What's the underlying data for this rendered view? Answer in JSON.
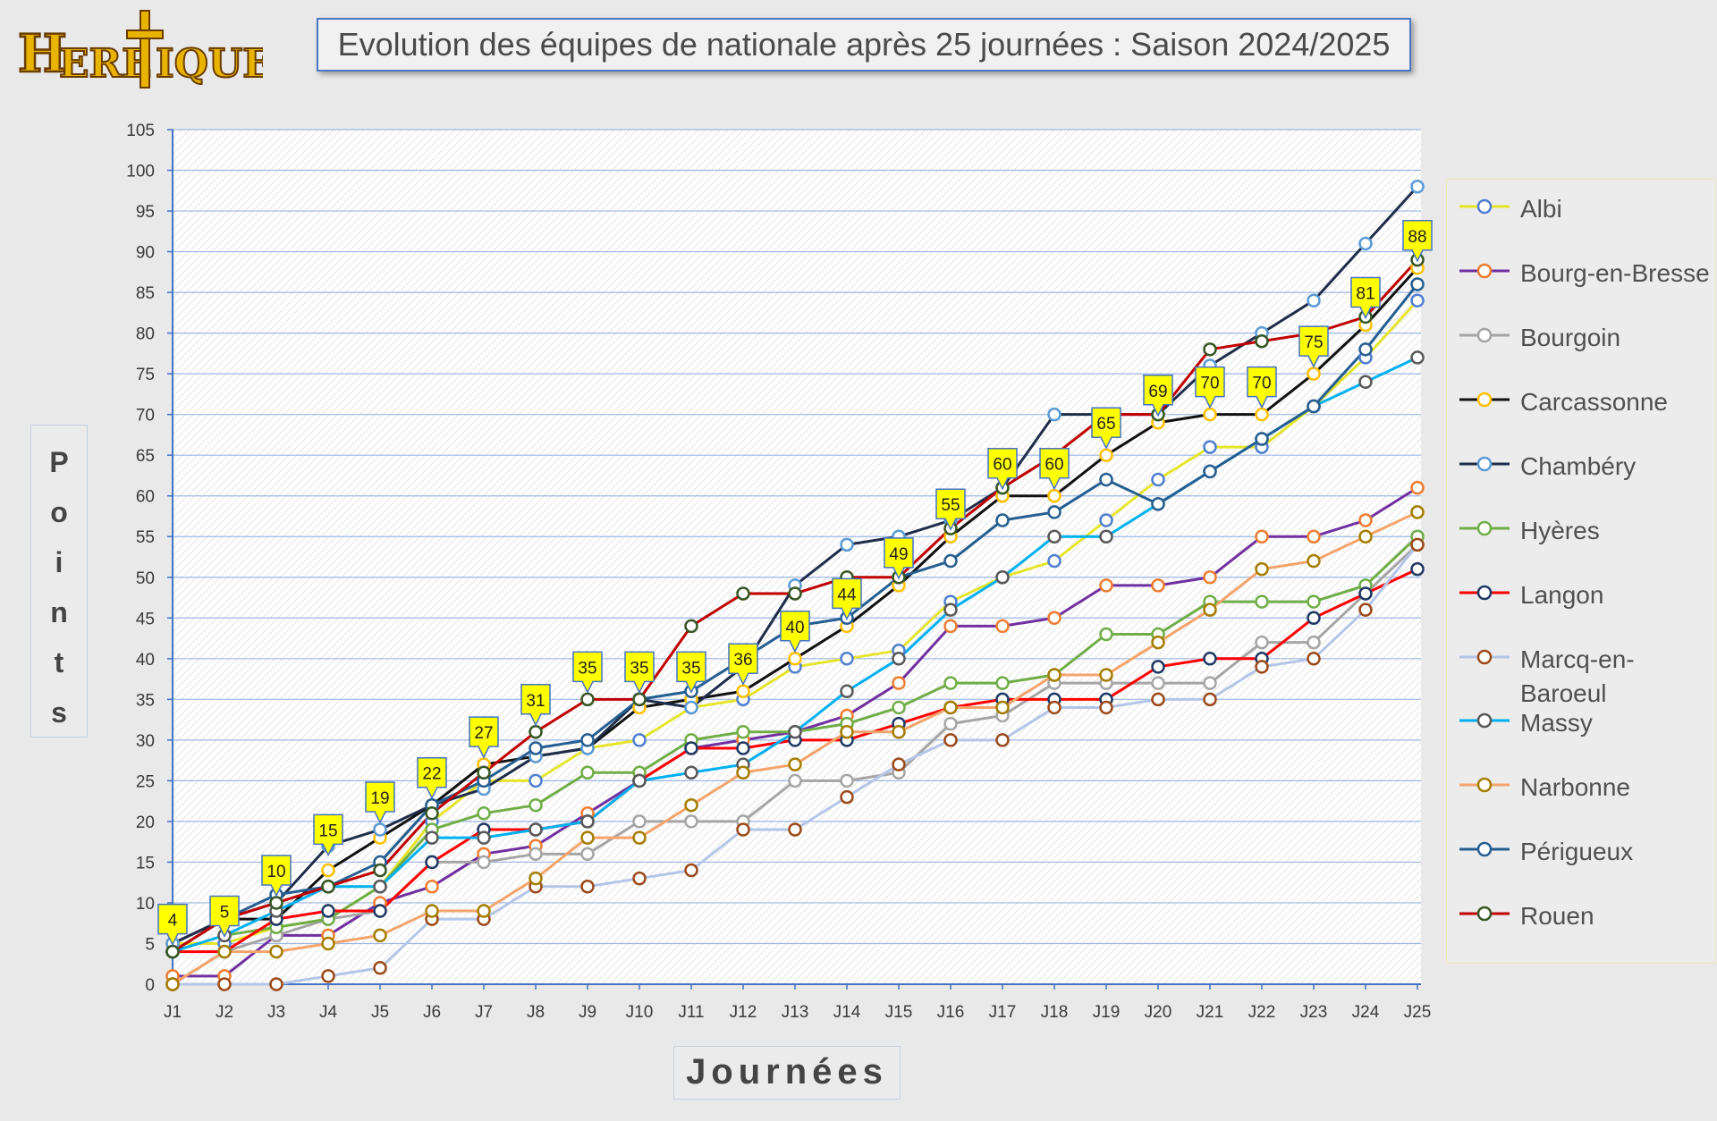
{
  "logo_text": "Heretiques",
  "title": "Evolution des équipes de nationale après 25 journées : Saison 2024/2025",
  "chart_data": {
    "type": "line",
    "title": "Evolution des équipes de nationale après 25 journées : Saison 2024/2025",
    "xlabel": "Journées",
    "ylabel": "Points",
    "ylim": [
      0,
      105
    ],
    "yticks": [
      0,
      5,
      10,
      15,
      20,
      25,
      30,
      35,
      40,
      45,
      50,
      55,
      60,
      65,
      70,
      75,
      80,
      85,
      90,
      95,
      100,
      105
    ],
    "grid": true,
    "legend_position": "right",
    "categories": [
      "J1",
      "J2",
      "J3",
      "J4",
      "J5",
      "J6",
      "J7",
      "J8",
      "J9",
      "J10",
      "J11",
      "J12",
      "J13",
      "J14",
      "J15",
      "J16",
      "J17",
      "J18",
      "J19",
      "J20",
      "J21",
      "J22",
      "J23",
      "J24",
      "J25"
    ],
    "series": [
      {
        "name": "Albi",
        "color": "#e5e52c",
        "marker": "#4f7fd0",
        "values": [
          5,
          5,
          7,
          8,
          12,
          20,
          25,
          25,
          29,
          30,
          34,
          35,
          39,
          40,
          41,
          47,
          50,
          52,
          57,
          62,
          66,
          66,
          71,
          77,
          84
        ]
      },
      {
        "name": "Bourg-en-Bresse",
        "color": "#7030a0",
        "marker": "#ee7d31",
        "values": [
          1,
          1,
          6,
          6,
          10,
          12,
          16,
          17,
          21,
          25,
          29,
          30,
          31,
          33,
          37,
          44,
          44,
          45,
          49,
          49,
          50,
          55,
          55,
          57,
          61
        ]
      },
      {
        "name": "Bourgoin",
        "color": "#a5a5a5",
        "marker": "#a5a5a5",
        "values": [
          0,
          4,
          6,
          8,
          9,
          15,
          15,
          16,
          16,
          20,
          20,
          20,
          25,
          25,
          26,
          32,
          33,
          37,
          37,
          37,
          37,
          42,
          42,
          48,
          54
        ]
      },
      {
        "name": "Carcassonne",
        "color": "#111111",
        "marker": "#ffc000",
        "values": [
          5,
          8,
          8,
          14,
          18,
          22,
          27,
          28,
          29,
          34,
          35,
          36,
          40,
          44,
          49,
          55,
          60,
          60,
          65,
          69,
          70,
          70,
          75,
          81,
          88
        ]
      },
      {
        "name": "Chambéry",
        "color": "#1f2d4a",
        "marker": "#5b9bd5",
        "values": [
          5,
          8,
          10,
          17,
          19,
          22,
          24,
          28,
          29,
          35,
          34,
          39,
          49,
          54,
          55,
          57,
          61,
          70,
          70,
          70,
          76,
          80,
          84,
          91,
          98
        ]
      },
      {
        "name": "Hyères",
        "color": "#70ad47",
        "marker": "#70ad47",
        "values": [
          4,
          6,
          7,
          8,
          12,
          19,
          21,
          22,
          26,
          26,
          30,
          31,
          31,
          32,
          34,
          37,
          37,
          38,
          43,
          43,
          47,
          47,
          47,
          49,
          55
        ]
      },
      {
        "name": "Langon",
        "color": "#ff0000",
        "marker": "#1f3864",
        "values": [
          4,
          4,
          8,
          9,
          9,
          15,
          19,
          19,
          20,
          25,
          29,
          29,
          30,
          30,
          32,
          34,
          35,
          35,
          35,
          39,
          40,
          40,
          45,
          48,
          51
        ]
      },
      {
        "name": "Marcq-en-Baroeul",
        "color": "#b4c6e7",
        "marker": "#9c4a1a",
        "values": [
          0,
          0,
          0,
          1,
          2,
          8,
          8,
          12,
          12,
          13,
          14,
          19,
          19,
          23,
          27,
          30,
          30,
          34,
          34,
          35,
          35,
          39,
          40,
          46,
          54
        ]
      },
      {
        "name": "Massy",
        "color": "#00b0f0",
        "marker": "#595959",
        "values": [
          4,
          6,
          9,
          12,
          12,
          18,
          18,
          19,
          20,
          25,
          26,
          27,
          31,
          36,
          40,
          46,
          50,
          55,
          55,
          59,
          63,
          67,
          71,
          74,
          77
        ]
      },
      {
        "name": "Narbonne",
        "color": "#f4a46b",
        "marker": "#a57d00",
        "values": [
          0,
          4,
          4,
          5,
          6,
          9,
          9,
          13,
          18,
          18,
          22,
          26,
          27,
          31,
          31,
          34,
          34,
          38,
          38,
          42,
          46,
          51,
          52,
          55,
          58
        ]
      },
      {
        "name": "Périgueux",
        "color": "#255e91",
        "marker": "#255e91",
        "values": [
          4,
          8,
          11,
          12,
          15,
          22,
          25,
          29,
          30,
          35,
          36,
          40,
          44,
          45,
          50,
          52,
          57,
          58,
          62,
          59,
          63,
          67,
          71,
          78,
          86
        ]
      },
      {
        "name": "Rouen",
        "color": "#c00000",
        "marker": "#375623",
        "values": [
          4,
          8,
          10,
          12,
          14,
          21,
          26,
          31,
          35,
          35,
          44,
          48,
          48,
          50,
          50,
          56,
          61,
          65,
          70,
          70,
          78,
          79,
          80,
          82,
          89
        ]
      }
    ],
    "annotations": [
      {
        "x": "J1",
        "y": 4,
        "label": "4"
      },
      {
        "x": "J2",
        "y": 5,
        "label": "5"
      },
      {
        "x": "J3",
        "y": 10,
        "label": "10"
      },
      {
        "x": "J4",
        "y": 15,
        "label": "15"
      },
      {
        "x": "J5",
        "y": 19,
        "label": "19"
      },
      {
        "x": "J6",
        "y": 22,
        "label": "22"
      },
      {
        "x": "J7",
        "y": 27,
        "label": "27"
      },
      {
        "x": "J8",
        "y": 31,
        "label": "31"
      },
      {
        "x": "J9",
        "y": 35,
        "label": "35"
      },
      {
        "x": "J10",
        "y": 35,
        "label": "35"
      },
      {
        "x": "J11",
        "y": 35,
        "label": "35"
      },
      {
        "x": "J12",
        "y": 36,
        "label": "36"
      },
      {
        "x": "J13",
        "y": 40,
        "label": "40"
      },
      {
        "x": "J14",
        "y": 44,
        "label": "44"
      },
      {
        "x": "J15",
        "y": 49,
        "label": "49"
      },
      {
        "x": "J16",
        "y": 55,
        "label": "55"
      },
      {
        "x": "J17",
        "y": 60,
        "label": "60"
      },
      {
        "x": "J18",
        "y": 60,
        "label": "60"
      },
      {
        "x": "J19",
        "y": 65,
        "label": "65"
      },
      {
        "x": "J20",
        "y": 69,
        "label": "69"
      },
      {
        "x": "J21",
        "y": 70,
        "label": "70"
      },
      {
        "x": "J22",
        "y": 70,
        "label": "70"
      },
      {
        "x": "J23",
        "y": 75,
        "label": "75"
      },
      {
        "x": "J24",
        "y": 81,
        "label": "81"
      },
      {
        "x": "J25",
        "y": 88,
        "label": "88"
      }
    ]
  }
}
